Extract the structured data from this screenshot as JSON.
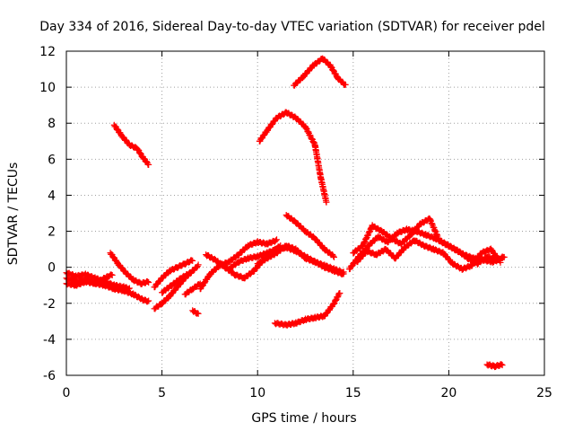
{
  "chart_data": {
    "type": "scatter",
    "title": "Day 334 of 2016, Sidereal Day-to-day VTEC variation (SDTVAR) for receiver pdel",
    "xlabel": "GPS time / hours",
    "ylabel": "SDTVAR / TECUs",
    "xlim": [
      0,
      25
    ],
    "ylim": [
      -6,
      12
    ],
    "xticks": [
      0,
      5,
      10,
      15,
      20,
      25
    ],
    "yticks": [
      -6,
      -4,
      -2,
      0,
      2,
      4,
      6,
      8,
      10,
      12
    ],
    "grid": true,
    "marker": "+",
    "color": "#ff0000",
    "series": [
      {
        "name": "s1",
        "x": [
          0,
          0.5,
          1,
          1.5,
          2,
          2.5,
          3,
          3.5,
          4,
          4.3
        ],
        "y": [
          -0.6,
          -0.8,
          -0.7,
          -0.9,
          -1.0,
          -1.2,
          -1.3,
          -1.5,
          -1.8,
          -1.9
        ]
      },
      {
        "name": "s2",
        "x": [
          0,
          0.5,
          1,
          1.5,
          2,
          2.5,
          3,
          3.3
        ],
        "y": [
          -0.3,
          -0.5,
          -0.4,
          -0.6,
          -0.8,
          -1.0,
          -1.1,
          -1.2
        ]
      },
      {
        "name": "s3",
        "x": [
          0,
          0.5,
          1,
          1.5,
          2,
          2.4
        ],
        "y": [
          -0.9,
          -1.0,
          -0.8,
          -0.9,
          -0.6,
          -0.4
        ]
      },
      {
        "name": "s4",
        "x": [
          2.3,
          2.7,
          3.1,
          3.5,
          3.9,
          4.3
        ],
        "y": [
          0.8,
          0.2,
          -0.3,
          -0.7,
          -0.9,
          -0.8
        ]
      },
      {
        "name": "s5",
        "x": [
          2.5,
          2.9,
          3.3,
          3.7,
          4.0,
          4.3
        ],
        "y": [
          7.9,
          7.3,
          6.8,
          6.6,
          6.1,
          5.7
        ]
      },
      {
        "name": "s6",
        "x": [
          4.6,
          5.0,
          5.4,
          5.8,
          6.2,
          6.5
        ],
        "y": [
          -2.3,
          -2.0,
          -1.6,
          -1.1,
          -0.6,
          -0.3
        ]
      },
      {
        "name": "s7",
        "x": [
          4.6,
          5.0,
          5.4,
          5.8,
          6.2,
          6.6
        ],
        "y": [
          -1.1,
          -0.6,
          -0.2,
          0.0,
          0.2,
          0.4
        ]
      },
      {
        "name": "s8",
        "x": [
          5.0,
          5.5,
          6.0,
          6.5,
          6.9
        ],
        "y": [
          -1.4,
          -1.0,
          -0.6,
          -0.3,
          0.1
        ]
      },
      {
        "name": "s9",
        "x": [
          6.2,
          6.6,
          7.0
        ],
        "y": [
          -1.5,
          -1.2,
          -0.9
        ]
      },
      {
        "name": "s10",
        "x": [
          6.6,
          6.9
        ],
        "y": [
          -2.4,
          -2.6
        ]
      },
      {
        "name": "s11",
        "x": [
          7.0,
          7.5,
          8.0,
          8.5,
          9.0,
          9.5,
          10.0,
          10.5,
          11.0
        ],
        "y": [
          -1.2,
          -0.4,
          0.1,
          0.3,
          0.7,
          1.2,
          1.4,
          1.3,
          1.5
        ]
      },
      {
        "name": "s12",
        "x": [
          7.3,
          7.8,
          8.3,
          8.8,
          9.3,
          9.8,
          10.3,
          10.8,
          11.2
        ],
        "y": [
          0.7,
          0.4,
          0.0,
          -0.4,
          -0.6,
          -0.2,
          0.4,
          0.9,
          1.2
        ]
      },
      {
        "name": "s13",
        "x": [
          8.5,
          9.0,
          9.5,
          10.0,
          10.5,
          11.0,
          11.5,
          12.0,
          12.5,
          13.0,
          13.5,
          14.0,
          14.5
        ],
        "y": [
          -0.1,
          0.3,
          0.5,
          0.6,
          0.8,
          1.0,
          1.1,
          0.9,
          0.6,
          0.3,
          0.0,
          -0.2,
          -0.4
        ]
      },
      {
        "name": "s14",
        "x": [
          10.0,
          10.5,
          11.0,
          11.5,
          12.0,
          12.5,
          13.0,
          13.5,
          14.0,
          14.5
        ],
        "y": [
          0.2,
          0.5,
          0.8,
          1.2,
          1.0,
          0.5,
          0.3,
          0.1,
          -0.1,
          -0.3
        ]
      },
      {
        "name": "s15",
        "x": [
          11.5,
          12.0,
          12.5,
          13.0,
          13.5,
          14.0
        ],
        "y": [
          2.9,
          2.5,
          2.0,
          1.6,
          1.0,
          0.6
        ]
      },
      {
        "name": "s16",
        "x": [
          10.1,
          10.5,
          11.0,
          11.5,
          12.0,
          12.5,
          13.0,
          13.3,
          13.6
        ],
        "y": [
          7.0,
          7.6,
          8.3,
          8.6,
          8.3,
          7.8,
          6.8,
          5.0,
          3.6
        ]
      },
      {
        "name": "s17",
        "x": [
          11.9,
          12.4,
          12.9,
          13.4,
          13.8,
          14.2,
          14.6
        ],
        "y": [
          10.1,
          10.6,
          11.2,
          11.6,
          11.2,
          10.5,
          10.1
        ]
      },
      {
        "name": "s18",
        "x": [
          10.9,
          11.5,
          12.0,
          12.5,
          13.0,
          13.5,
          14.0,
          14.3
        ],
        "y": [
          -3.1,
          -3.2,
          -3.1,
          -2.9,
          -2.8,
          -2.7,
          -2.0,
          -1.4
        ]
      },
      {
        "name": "s19",
        "x": [
          14.8,
          15.3,
          15.8,
          16.3,
          16.8,
          17.3,
          17.8,
          18.3,
          18.8,
          19.3,
          19.8,
          20.3,
          20.8,
          21.3,
          21.8,
          22.3,
          22.8
        ],
        "y": [
          -0.1,
          0.6,
          1.2,
          1.7,
          1.4,
          1.9,
          2.1,
          2.0,
          1.8,
          1.6,
          1.3,
          1.0,
          0.7,
          0.5,
          0.4,
          0.3,
          0.5
        ]
      },
      {
        "name": "s20",
        "x": [
          15.0,
          15.5,
          16.0,
          16.5,
          17.0,
          17.5,
          18.0,
          18.5,
          19.0,
          19.5,
          20.0,
          20.5,
          21.0,
          21.5,
          22.0,
          22.5,
          22.9
        ],
        "y": [
          0.8,
          1.2,
          2.3,
          2.0,
          1.6,
          1.3,
          1.8,
          2.4,
          2.7,
          1.5,
          1.2,
          0.9,
          0.5,
          0.2,
          0.6,
          0.4,
          0.6
        ]
      },
      {
        "name": "s21",
        "x": [
          15.2,
          15.7,
          16.2,
          16.7,
          17.2,
          17.7,
          18.2,
          18.7,
          19.2,
          19.7,
          20.2,
          20.7,
          21.2,
          21.7,
          22.2,
          22.7
        ],
        "y": [
          0.3,
          0.9,
          0.7,
          1.0,
          0.5,
          1.1,
          1.5,
          1.2,
          1.0,
          0.8,
          0.2,
          -0.1,
          0.1,
          0.8,
          1.0,
          0.3
        ]
      },
      {
        "name": "s22",
        "x": [
          22.0,
          22.4,
          22.8
        ],
        "y": [
          -5.4,
          -5.5,
          -5.4
        ]
      }
    ]
  }
}
